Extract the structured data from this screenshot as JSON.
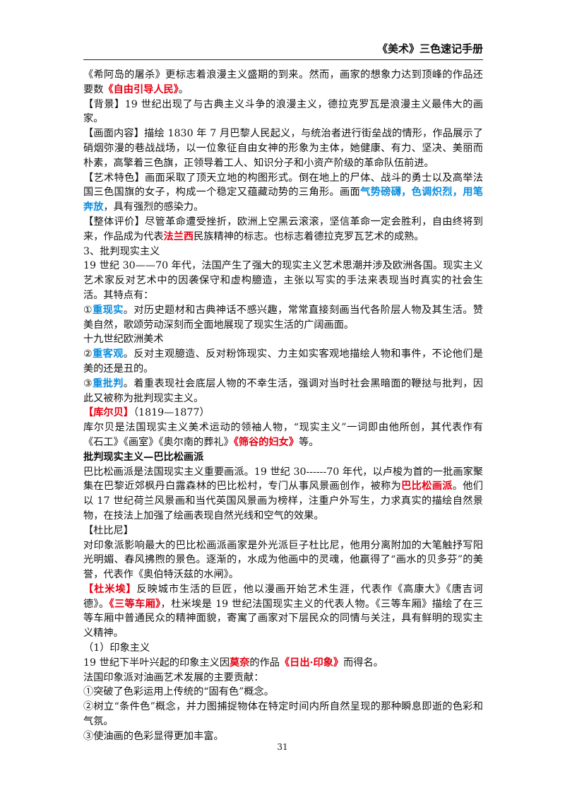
{
  "header": {
    "title": "《美术》三色速记手册"
  },
  "paragraphs": [
    {
      "runs": [
        {
          "text": "《希阿岛的屠杀》更标志着浪漫主义盛期的到来。然而，画家的想象力达到顶峰的作品还要数"
        },
        {
          "text": "《自由引导人民》",
          "style": "red"
        },
        {
          "text": "。"
        }
      ]
    },
    {
      "runs": [
        {
          "text": "【背景】19 世纪出现了与古典主义斗争的浪漫主义，德拉克罗瓦是浪漫主义最伟大的画家。"
        }
      ]
    },
    {
      "runs": [
        {
          "text": "【画面内容】描绘 1830 年 7 月巴黎人民起义，与统治者进行街垒战的情形，作品展示了硝烟弥漫的巷战战场，以一位象征自由女神的形象为主体，她健康、有力、坚决、美丽而朴素，高擎着三色旗，正领导着工人、知识分子和小资产阶级的革命队伍前进。"
        }
      ]
    },
    {
      "runs": [
        {
          "text": "【艺术特色】画面采取了顶天立地的构图形式。倒在地上的尸体、战斗的勇士以及高举法国三色国旗的女子，构成一个稳定又蕴藏动势的三角形。画面"
        },
        {
          "text": "气势磅礴，色调炽烈，用笔奔放",
          "style": "blue"
        },
        {
          "text": "，具有强烈的感染力。"
        }
      ]
    },
    {
      "runs": [
        {
          "text": "【整体评价】尽管革命遭受挫折，欧洲上空黑云滚滚，坚信革命一定会胜利，自由终将到来，作品成为代表"
        },
        {
          "text": "法兰西",
          "style": "red"
        },
        {
          "text": "民族精神的标志。也标志着德拉克罗瓦艺术的成熟。"
        }
      ]
    },
    {
      "runs": [
        {
          "text": "3、批判现实主义"
        }
      ]
    },
    {
      "runs": [
        {
          "text": "19 世纪 30——70 年代，法国产生了强大的现实主义艺术思潮并涉及欧洲各国。现实主义艺术家反对艺术中的因袭保守和虚构臆造，主张以写实的手法来表现当时真实的社会生活。其特点有："
        }
      ]
    },
    {
      "runs": [
        {
          "text": "①"
        },
        {
          "text": "重现实",
          "style": "blue"
        },
        {
          "text": "。对历史题材和古典神话不感兴趣，常常直接刻画当代各阶层人物及其生活。赞美自然，歌颂劳动深刻而全面地展现了现实生活的广阔画面。"
        }
      ]
    },
    {
      "runs": [
        {
          "text": "十九世纪欧洲美术"
        }
      ]
    },
    {
      "runs": [
        {
          "text": "②"
        },
        {
          "text": "重客观",
          "style": "blue"
        },
        {
          "text": "。反对主观臆造、反对粉饰现实、力主如实客观地描绘人物和事件，不论他们是美的还是丑的。"
        }
      ]
    },
    {
      "runs": [
        {
          "text": "③"
        },
        {
          "text": "重批判",
          "style": "blue"
        },
        {
          "text": "。着重表现社会底层人物的不幸生活，强调对当时社会黑暗面的鞭挞与批判，因此又被称为批判现实主义。"
        }
      ]
    },
    {
      "runs": [
        {
          "text": "【库尔贝】",
          "style": "red"
        },
        {
          "text": "（1819—1877）"
        }
      ]
    },
    {
      "runs": [
        {
          "text": "库尔贝是法国现实主义美术运动的领袖人物，“现实主义”一词即由他所创，其代表作有《石工》《画室》《奥尔南的葬礼》"
        },
        {
          "text": "《筛谷的妇女》",
          "style": "red"
        },
        {
          "text": "等。"
        }
      ]
    },
    {
      "runs": [
        {
          "text": "批判现实主义—巴比松画派",
          "style": "bold"
        }
      ]
    },
    {
      "runs": [
        {
          "text": "巴比松画派是法国现实主义重要画派。19 世纪 30------70 年代，以卢梭为首的一批画家聚集在巴黎近郊枫丹白露森林的巴比松村，专门从事风景画创作，被称为"
        },
        {
          "text": "巴比松画派",
          "style": "red"
        },
        {
          "text": "。他们以 17 世纪荷兰风景画和当代英国风景画为榜样，注重户外写生，力求真实的描绘自然景物，在技法上加强了绘画表现自然光线和空气的效果。"
        }
      ]
    },
    {
      "runs": [
        {
          "text": "【杜比尼】"
        }
      ]
    },
    {
      "runs": [
        {
          "text": "对印象派影响最大的巴比松画派画家是外光派巨子杜比尼，他用分离附加的大笔触抒写阳光明媚、春风拂煦的景色。逐渐的，水成为他画中的灵魂，他赢得了“画水的贝多芬”的美誉，代表作《奥伯特沃兹的水闸》。"
        }
      ]
    },
    {
      "runs": [
        {
          "text": "【杜米埃】",
          "style": "red"
        },
        {
          "text": "反映城市生活的巨匠，他以漫画开始艺术生涯，代表作《高康大》《唐吉诃德》。"
        },
        {
          "text": "《三等车厢》",
          "style": "red"
        },
        {
          "text": "，杜米埃是 19 世纪法国现实主义的代表人物。《三等车厢》描绘了在三等车厢中普通民众的精神面貌，寄寓了画家对下层民众的同情与关注，具有鲜明的现实主义精神。"
        }
      ]
    },
    {
      "runs": [
        {
          "text": "（1）印象主义"
        }
      ]
    },
    {
      "runs": [
        {
          "text": "19 世纪下半叶兴起的印象主义因"
        },
        {
          "text": "莫奈",
          "style": "red"
        },
        {
          "text": "的作品"
        },
        {
          "text": "《日出·印象》",
          "style": "red"
        },
        {
          "text": "而得名。"
        }
      ]
    },
    {
      "runs": [
        {
          "text": "法国印象派对油画艺术发展的主要贡献："
        }
      ]
    },
    {
      "runs": [
        {
          "text": "①突破了色彩运用上传统的“固有色”概念。"
        }
      ]
    },
    {
      "runs": [
        {
          "text": "②树立“条件色”概念，并力图捕捉物体在特定时间内所自然呈现的那种瞬息即逝的色彩和气氛。"
        }
      ]
    },
    {
      "runs": [
        {
          "text": "③使油画的色彩显得更加丰富。"
        }
      ]
    }
  ],
  "page_number": "31"
}
